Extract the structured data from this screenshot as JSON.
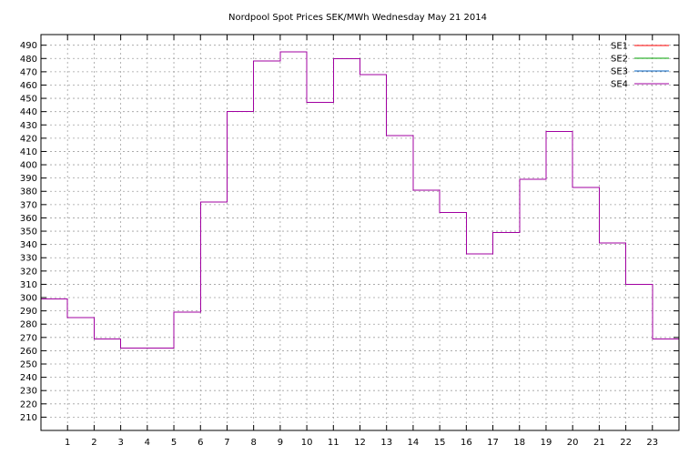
{
  "chart_data": {
    "type": "line",
    "step": true,
    "title": "Nordpool Spot Prices SEK/MWh Wednesday May 21 2014",
    "xlabel": "",
    "ylabel": "",
    "xlim": [
      0,
      24
    ],
    "ylim": [
      200,
      498
    ],
    "x_ticks": [
      1,
      2,
      3,
      4,
      5,
      6,
      7,
      8,
      9,
      10,
      11,
      12,
      13,
      14,
      15,
      16,
      17,
      18,
      19,
      20,
      21,
      22,
      23
    ],
    "y_ticks": [
      210,
      220,
      230,
      240,
      250,
      260,
      270,
      280,
      290,
      300,
      310,
      320,
      330,
      340,
      350,
      360,
      370,
      380,
      390,
      400,
      410,
      420,
      430,
      440,
      450,
      460,
      470,
      480,
      490
    ],
    "grid": true,
    "legend_position": "top-right",
    "hours": [
      0,
      1,
      2,
      3,
      4,
      5,
      6,
      7,
      8,
      9,
      10,
      11,
      12,
      13,
      14,
      15,
      16,
      17,
      18,
      19,
      20,
      21,
      22,
      23
    ],
    "series": [
      {
        "name": "SE1",
        "color": "#ff0000",
        "values": [
          299,
          285,
          269,
          262,
          262,
          289,
          372,
          440,
          478,
          485,
          447,
          480,
          468,
          422,
          381,
          364,
          333,
          349,
          389,
          425,
          383,
          341,
          310,
          269
        ]
      },
      {
        "name": "SE2",
        "color": "#00a000",
        "values": [
          299,
          285,
          269,
          262,
          262,
          289,
          372,
          440,
          478,
          485,
          447,
          480,
          468,
          422,
          381,
          364,
          333,
          349,
          389,
          425,
          383,
          341,
          310,
          269
        ]
      },
      {
        "name": "SE3",
        "color": "#0060c0",
        "values": [
          299,
          285,
          269,
          262,
          262,
          289,
          372,
          440,
          478,
          485,
          447,
          480,
          468,
          422,
          381,
          364,
          333,
          349,
          389,
          425,
          383,
          341,
          310,
          269
        ]
      },
      {
        "name": "SE4",
        "color": "#a000a0",
        "values": [
          299,
          285,
          269,
          262,
          262,
          289,
          372,
          440,
          478,
          485,
          447,
          480,
          468,
          422,
          381,
          364,
          333,
          349,
          389,
          425,
          383,
          341,
          310,
          269
        ]
      }
    ]
  }
}
